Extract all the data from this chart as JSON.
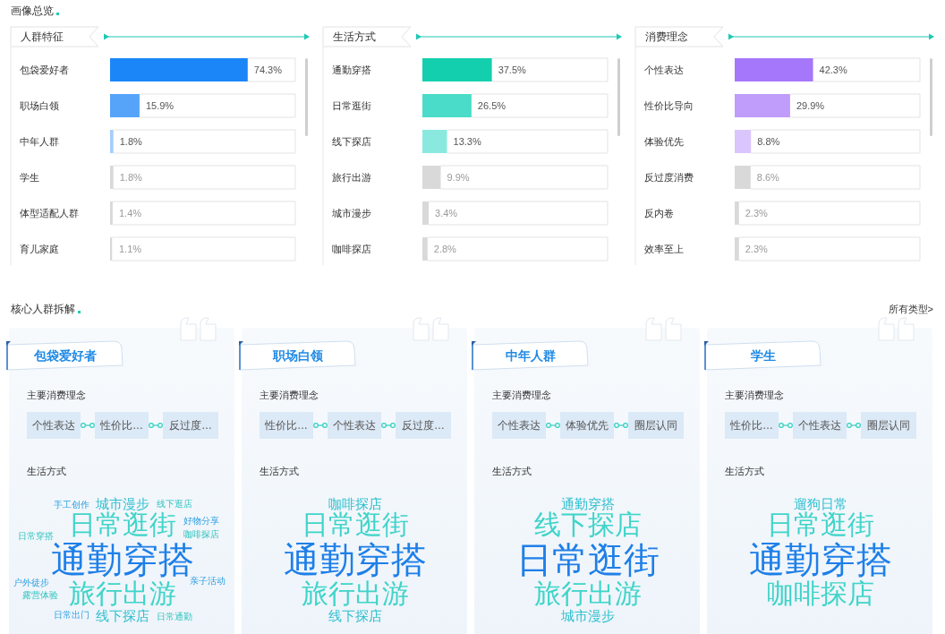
{
  "chart_data": [
    {
      "type": "other",
      "title": "画像总览"
    },
    {
      "type": "bar",
      "orientation": "horizontal",
      "title": "人群特征",
      "categories": [
        "包袋爱好者",
        "职场白领",
        "中年人群",
        "学生",
        "体型适配人群",
        "育儿家庭"
      ],
      "values": [
        74.3,
        15.9,
        1.8,
        1.8,
        1.4,
        1.1
      ],
      "colors": [
        "#1a86f8",
        "#55a4f9",
        "#a8cdfb",
        "#d9d9d9",
        "#d9d9d9",
        "#d9d9d9"
      ],
      "value_labels": [
        "74.3%",
        "15.9%",
        "1.8%",
        "1.8%",
        "1.4%",
        "1.1%"
      ],
      "xlim": [
        0,
        100
      ],
      "tick_labels": "y"
    },
    {
      "type": "bar",
      "orientation": "horizontal",
      "title": "生活方式",
      "categories": [
        "通勤穿搭",
        "日常逛街",
        "线下探店",
        "旅行出游",
        "城市漫步",
        "咖啡探店"
      ],
      "values": [
        37.5,
        26.5,
        13.3,
        9.9,
        3.4,
        2.8
      ],
      "colors": [
        "#14cfae",
        "#4adcc8",
        "#8ae9de",
        "#d9d9d9",
        "#d9d9d9",
        "#d9d9d9"
      ],
      "value_labels": [
        "37.5%",
        "26.5%",
        "13.3%",
        "9.9%",
        "3.4%",
        "2.8%"
      ],
      "xlim": [
        0,
        100
      ],
      "tick_labels": "y"
    },
    {
      "type": "bar",
      "orientation": "horizontal",
      "title": "消费理念",
      "categories": [
        "个性表达",
        "性价比导向",
        "体验优先",
        "反过度消费",
        "反内卷",
        "效率至上"
      ],
      "values": [
        42.3,
        29.9,
        8.8,
        8.6,
        2.3,
        2.3
      ],
      "colors": [
        "#a577fa",
        "#c09cfb",
        "#dac6fd",
        "#d9d9d9",
        "#d9d9d9",
        "#d9d9d9"
      ],
      "value_labels": [
        "42.3%",
        "29.9%",
        "8.8%",
        "8.6%",
        "2.3%",
        "2.3%"
      ],
      "xlim": [
        0,
        100
      ],
      "tick_labels": "y"
    },
    {
      "type": "other",
      "title": "核心人群拆解",
      "annotations": [
        "所有类型>"
      ]
    },
    {
      "type": "other",
      "title": "包袋爱好者",
      "subtitle": "主要消费理念",
      "categories": [
        "个性表达",
        "性价比…",
        "反过度…"
      ],
      "annotations": [
        "生活方式",
        "通勤穿搭",
        "日常逛街",
        "旅行出游",
        "城市漫步",
        "线下探店",
        "手工创作",
        "日常穿搭",
        "户外徒步",
        "露营体验",
        "日常出门",
        "线下逛店",
        "好物分享",
        "咖啡探店",
        "亲子活动",
        "日常通勤"
      ]
    },
    {
      "type": "other",
      "title": "职场白领",
      "subtitle": "主要消费理念",
      "categories": [
        "性价比…",
        "个性表达",
        "反过度…"
      ],
      "annotations": [
        "生活方式",
        "通勤穿搭",
        "日常逛街",
        "旅行出游",
        "咖啡探店",
        "线下探店"
      ]
    },
    {
      "type": "other",
      "title": "中年人群",
      "subtitle": "主要消费理念",
      "categories": [
        "个性表达",
        "体验优先",
        "圈层认同"
      ],
      "annotations": [
        "生活方式",
        "日常逛街",
        "线下探店",
        "旅行出游",
        "通勤穿搭",
        "城市漫步"
      ]
    },
    {
      "type": "other",
      "title": "学生",
      "subtitle": "主要消费理念",
      "categories": [
        "性价比…",
        "个性表达",
        "圈层认同"
      ],
      "annotations": [
        "生活方式",
        "通勤穿搭",
        "日常逛街",
        "咖啡探店",
        "遛狗日常"
      ]
    }
  ]
}
